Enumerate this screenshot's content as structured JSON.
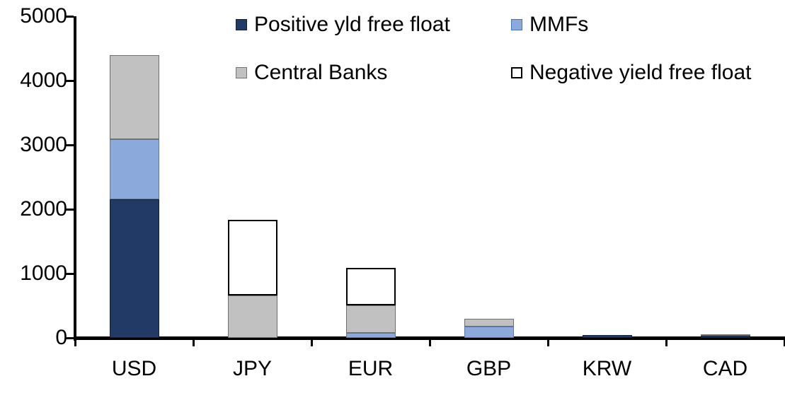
{
  "chart_data": {
    "type": "bar",
    "stacked": true,
    "title": "",
    "xlabel": "",
    "ylabel": "",
    "categories": [
      "USD",
      "JPY",
      "EUR",
      "GBP",
      "KRW",
      "CAD"
    ],
    "series": [
      {
        "name": "Positive yld free float",
        "color": "#213A66",
        "border_color": "#10203C",
        "values": [
          2150,
          0,
          0,
          0,
          40,
          30
        ]
      },
      {
        "name": "MMFs",
        "color": "#8CA9DC",
        "border_color": "#5A78AC",
        "values": [
          940,
          0,
          80,
          180,
          0,
          0
        ]
      },
      {
        "name": "Central Banks",
        "color": "#C1C1C1",
        "border_color": "#6E6E6E",
        "values": [
          1310,
          660,
          425,
          120,
          0,
          25
        ]
      },
      {
        "name": "Negative yield free float",
        "color": "#FFFFFF",
        "border_color": "#000000",
        "values": [
          0,
          1170,
          585,
          0,
          0,
          0
        ]
      }
    ],
    "ylim": [
      0,
      5000
    ],
    "y_ticks": [
      "5000",
      "4000",
      "3000",
      "2000",
      "1000",
      "0"
    ],
    "grid": false,
    "legend_position": "top",
    "legend_rows": [
      [
        "Positive yld free float",
        "MMFs"
      ],
      [
        "Central Banks",
        "Negative yield free float"
      ]
    ]
  }
}
